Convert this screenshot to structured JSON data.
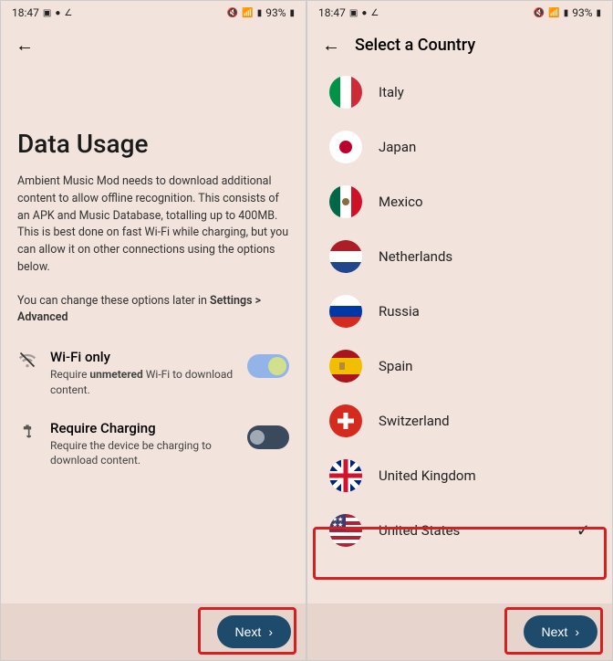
{
  "status": {
    "time": "18:47",
    "battery": "93%"
  },
  "screen1": {
    "title": "Data Usage",
    "body": "Ambient Music Mod needs to download additional content to allow offline recognition. This consists of an APK and Music Database, totalling up to 400MB. This is best done on fast Wi-Fi while charging, but you can allow it on other connections using the options below.",
    "hint_prefix": "You can change these options later in ",
    "hint_bold": "Settings > Advanced",
    "settings": {
      "wifi": {
        "title": "Wi-Fi only",
        "desc_prefix": "Require ",
        "desc_bold": "unmetered",
        "desc_suffix": " Wi-Fi to download content.",
        "on": true
      },
      "charging": {
        "title": "Require Charging",
        "desc": "Require the device be charging to download content.",
        "on": false
      }
    },
    "next_label": "Next"
  },
  "screen2": {
    "title": "Select a Country",
    "countries": [
      {
        "name": "Italy",
        "flag": "italy",
        "selected": false
      },
      {
        "name": "Japan",
        "flag": "japan",
        "selected": false
      },
      {
        "name": "Mexico",
        "flag": "mexico",
        "selected": false
      },
      {
        "name": "Netherlands",
        "flag": "netherlands",
        "selected": false
      },
      {
        "name": "Russia",
        "flag": "russia",
        "selected": false
      },
      {
        "name": "Spain",
        "flag": "spain",
        "selected": false
      },
      {
        "name": "Switzerland",
        "flag": "switzerland",
        "selected": false
      },
      {
        "name": "United Kingdom",
        "flag": "uk",
        "selected": false
      },
      {
        "name": "United States",
        "flag": "us",
        "selected": true
      }
    ],
    "next_label": "Next"
  },
  "colors": {
    "bg": "#f2e3dc",
    "bottom_bar": "#e7d4cc",
    "primary_btn": "#1e4a6b",
    "highlight": "#d61f1f",
    "switch_on_track": "#93b4e8",
    "switch_on_thumb": "#d2e08e",
    "switch_off_track": "#3a4a5c"
  }
}
